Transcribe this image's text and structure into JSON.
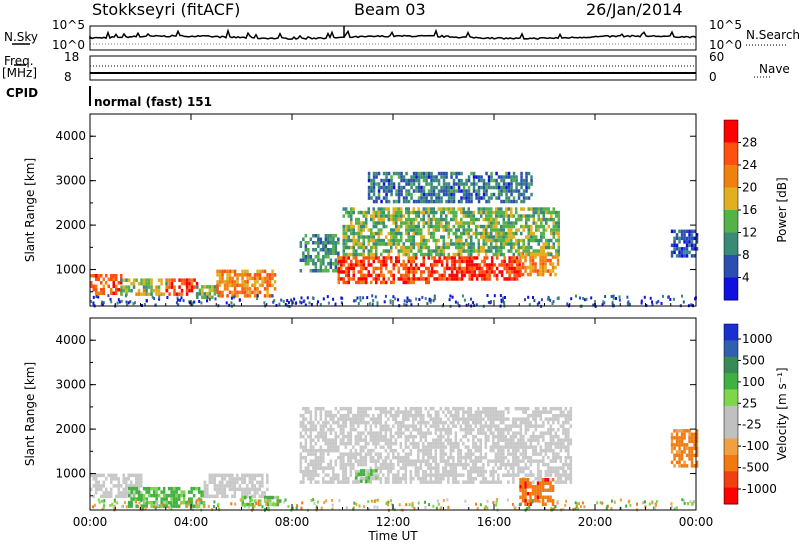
{
  "header": {
    "radar_name": "Stokkseyri (fitACF)",
    "beam": "Beam 03",
    "date": "26/Jan/2014"
  },
  "top_panels": {
    "nsky_label": "N.Sky",
    "nsky_ticks": [
      "10^5",
      "10^0"
    ],
    "nsearch_label": "N.Search",
    "nsearch_ticks": [
      "10^5",
      "10^0"
    ],
    "freq_label": "Freq.",
    "freq_unit": "[MHz]",
    "freq_ticks": [
      "18",
      "8"
    ],
    "nave_label": "Nave",
    "nave_ticks": [
      "60",
      "0"
    ],
    "cpid_label": "CPID",
    "cpid_value": "normal (fast) 151"
  },
  "colors": {
    "power_scale": [
      "#1010e0",
      "#2a4fb0",
      "#3a8a78",
      "#55b248",
      "#e0b020",
      "#f08010",
      "#ff5010",
      "#ff0000"
    ],
    "velocity_scale": [
      "#ff0000",
      "#f04010",
      "#f07a10",
      "#f0a040",
      "#c0c0c0",
      "#c0c0c0",
      "#7ed64a",
      "#40b040",
      "#3a8a58",
      "#2f60b0",
      "#1a2fd0"
    ],
    "ground_scatter": "#c8c8c8"
  },
  "chart_data": [
    {
      "type": "heatmap",
      "panel": "power",
      "xlabel": "",
      "ylabel": "Slant Range [km]",
      "colorbar_label": "Power [dB]",
      "colorbar_ticks": [
        "28",
        "24",
        "20",
        "16",
        "12",
        "8",
        "4"
      ],
      "colorbar_range": [
        0,
        32
      ],
      "x_ticks": [
        "00:00",
        "04:00",
        "08:00",
        "12:00",
        "16:00",
        "20:00",
        "00:00"
      ],
      "xlim_hours": [
        0,
        24
      ],
      "y_ticks": [
        "4000",
        "3000",
        "2000",
        "1000"
      ],
      "ylim_km": [
        180,
        4500
      ],
      "regions": [
        {
          "x": [
            0,
            1.2
          ],
          "y": [
            500,
            900
          ],
          "dB": 24
        },
        {
          "x": [
            1.2,
            3.0
          ],
          "y": [
            450,
            800
          ],
          "dB": 16
        },
        {
          "x": [
            3.0,
            4.2
          ],
          "y": [
            450,
            800
          ],
          "dB": 26
        },
        {
          "x": [
            4.2,
            5.0
          ],
          "y": [
            350,
            650
          ],
          "dB": 14
        },
        {
          "x": [
            5.0,
            7.3
          ],
          "y": [
            400,
            1000
          ],
          "dB": 22
        },
        {
          "x": [
            8.3,
            9.8
          ],
          "y": [
            1000,
            1800
          ],
          "dB": 10
        },
        {
          "x": [
            9.8,
            13.5
          ],
          "y": [
            700,
            1300
          ],
          "dB": 26
        },
        {
          "x": [
            13.5,
            17.0
          ],
          "y": [
            800,
            1300
          ],
          "dB": 28
        },
        {
          "x": [
            17.0,
            18.5
          ],
          "y": [
            900,
            1400
          ],
          "dB": 22
        },
        {
          "x": [
            10.0,
            18.6
          ],
          "y": [
            1300,
            2400
          ],
          "dB": 14
        },
        {
          "x": [
            11.0,
            17.5
          ],
          "y": [
            2500,
            3200
          ],
          "dB": 8
        },
        {
          "x": [
            23.0,
            24.0
          ],
          "y": [
            1300,
            1900
          ],
          "dB": 6
        }
      ]
    },
    {
      "type": "heatmap",
      "panel": "velocity",
      "xlabel": "Time UT",
      "ylabel": "Slant Range [km]",
      "colorbar_label": "Velocity [m s⁻¹]",
      "colorbar_ticks": [
        "1000",
        "500",
        "100",
        "25",
        "-25",
        "-100",
        "-500",
        "-1000"
      ],
      "x_ticks": [
        "00:00",
        "04:00",
        "08:00",
        "12:00",
        "16:00",
        "20:00",
        "00:00"
      ],
      "xlim_hours": [
        0,
        24
      ],
      "y_ticks": [
        "4000",
        "3000",
        "2000",
        "1000"
      ],
      "ylim_km": [
        180,
        4500
      ],
      "regions": [
        {
          "x": [
            0,
            2.0
          ],
          "y": [
            500,
            1000
          ],
          "v": 0
        },
        {
          "x": [
            1.5,
            4.5
          ],
          "y": [
            300,
            700
          ],
          "v": 150
        },
        {
          "x": [
            4.5,
            7.0
          ],
          "y": [
            500,
            1000
          ],
          "v": 0
        },
        {
          "x": [
            6.0,
            7.5
          ],
          "y": [
            300,
            500
          ],
          "v": 80
        },
        {
          "x": [
            8.3,
            19.0
          ],
          "y": [
            800,
            2500
          ],
          "v": 0
        },
        {
          "x": [
            10.5,
            11.3
          ],
          "y": [
            800,
            1100
          ],
          "v": 80
        },
        {
          "x": [
            17.0,
            18.3
          ],
          "y": [
            300,
            900
          ],
          "v": -450
        },
        {
          "x": [
            23.0,
            24.0
          ],
          "y": [
            1200,
            2000
          ],
          "v": -150
        }
      ]
    }
  ]
}
